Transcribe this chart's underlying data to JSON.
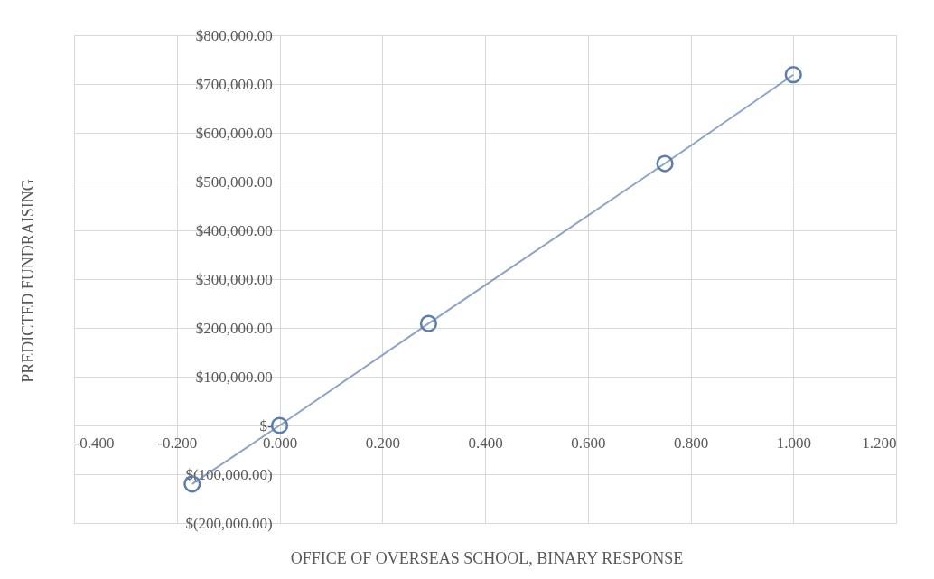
{
  "chart_data": {
    "type": "line",
    "xlabel": "OFFICE OF OVERSEAS SCHOOL, BINARY RESPONSE",
    "ylabel": "PREDICTED FUNDRAISING",
    "x": [
      -0.17,
      0,
      0.29,
      0.75,
      1.0
    ],
    "series": [
      {
        "color": "#5b7db1",
        "values": [
          -120000,
          0,
          209000,
          537000,
          719000
        ]
      }
    ],
    "xlim": [
      -0.4,
      1.2
    ],
    "xticks": [
      {
        "value": -0.4,
        "label": "-0.400"
      },
      {
        "value": -0.2,
        "label": "-0.200"
      },
      {
        "value": 0,
        "label": "0.000"
      },
      {
        "value": 0.2,
        "label": "0.200"
      },
      {
        "value": 0.4,
        "label": "0.400"
      },
      {
        "value": 0.6,
        "label": "0.600"
      },
      {
        "value": 0.8,
        "label": "0.800"
      },
      {
        "value": 1.0,
        "label": "1.000"
      },
      {
        "value": 1.2,
        "label": "1.200"
      }
    ],
    "ylim": [
      -200000,
      800000
    ],
    "yticks": [
      {
        "value": -200000,
        "label": "$(200,000.00)"
      },
      {
        "value": -100000,
        "label": "$(100,000.00)"
      },
      {
        "value": 0,
        "label": "$-"
      },
      {
        "value": 100000,
        "label": "$100,000.00"
      },
      {
        "value": 200000,
        "label": "$200,000.00"
      },
      {
        "value": 300000,
        "label": "$300,000.00"
      },
      {
        "value": 400000,
        "label": "$400,000.00"
      },
      {
        "value": 500000,
        "label": "$500,000.00"
      },
      {
        "value": 600000,
        "label": "$600,000.00"
      },
      {
        "value": 700000,
        "label": "$700,000.00"
      },
      {
        "value": 800000,
        "label": "$800,000.00"
      }
    ],
    "grid": true,
    "marker": "circle",
    "line_style": "solid"
  }
}
